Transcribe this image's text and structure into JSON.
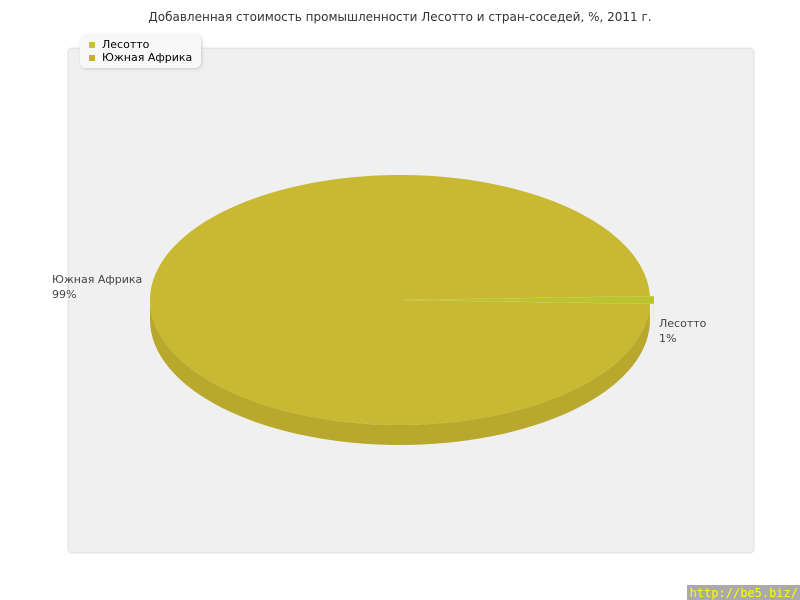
{
  "chart_data": {
    "type": "pie",
    "title": "Добавленная стоимость промышленности Лесотто и стран-соседей, %, 2011 г.",
    "slices": [
      {
        "label": "Лесотто",
        "value": 1,
        "value_label": "1%",
        "color": "#bcc42c"
      },
      {
        "label": "Южная Африка",
        "value": 99,
        "value_label": "99%",
        "color": "#c8b832"
      }
    ],
    "legend_placement": "top-left",
    "style": "3d"
  },
  "watermark": "http://be5.biz/"
}
